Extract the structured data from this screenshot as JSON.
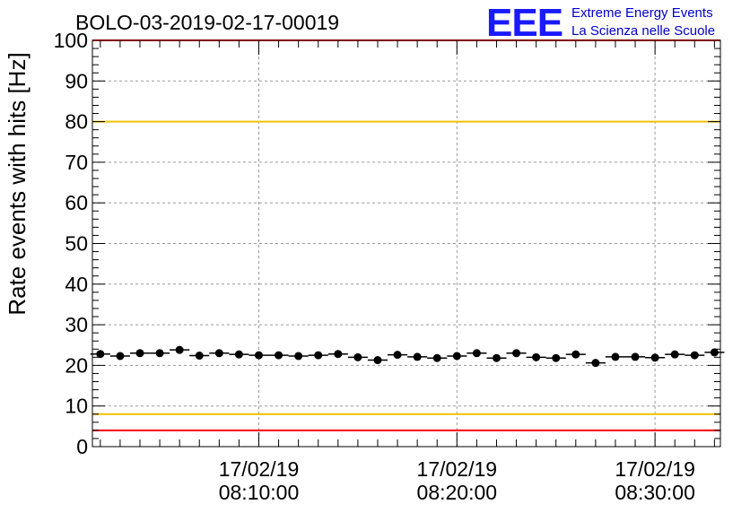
{
  "chart_data": {
    "type": "scatter",
    "title": "BOLO-03-2019-02-17-00019",
    "ylabel": "Rate events with hits [Hz]",
    "xlabel": "",
    "ylim": [
      0,
      100
    ],
    "y_ticks": [
      "0",
      "10",
      "20",
      "30",
      "40",
      "50",
      "60",
      "70",
      "80",
      "90",
      "100"
    ],
    "x_range_minutes": [
      1.6,
      33.3
    ],
    "x_ticks": [
      {
        "date": "17/02/19",
        "time": "08:10:00",
        "minute": 10
      },
      {
        "date": "17/02/19",
        "time": "08:20:00",
        "minute": 20
      },
      {
        "date": "17/02/19",
        "time": "08:30:00",
        "minute": 30
      }
    ],
    "grid": true,
    "reference_lines": [
      {
        "y": 100,
        "color": "#ff0000"
      },
      {
        "y": 80,
        "color": "#f0c000"
      },
      {
        "y": 8,
        "color": "#f0c000"
      },
      {
        "y": 4,
        "color": "#ff0000"
      }
    ],
    "series": [
      {
        "color": "#000000",
        "bin_width_minutes": 1,
        "x": [
          2,
          3,
          4,
          5,
          6,
          7,
          8,
          9,
          10,
          11,
          12,
          13,
          14,
          15,
          16,
          17,
          18,
          19,
          20,
          21,
          22,
          23,
          24,
          25,
          26,
          27,
          28,
          29,
          30,
          31,
          32,
          33
        ],
        "values": [
          22.8,
          22.3,
          23.0,
          23.0,
          23.8,
          22.4,
          23.0,
          22.7,
          22.5,
          22.5,
          22.3,
          22.5,
          22.8,
          22.0,
          21.3,
          22.6,
          22.1,
          21.8,
          22.3,
          23.0,
          21.8,
          23.0,
          22.0,
          21.8,
          22.7,
          20.6,
          22.1,
          22.1,
          21.9,
          22.7,
          22.5,
          23.2
        ]
      }
    ]
  },
  "logo": {
    "mark": "EEE",
    "line1": "Extreme Energy Events",
    "line2": "La Scienza nelle Scuole"
  }
}
